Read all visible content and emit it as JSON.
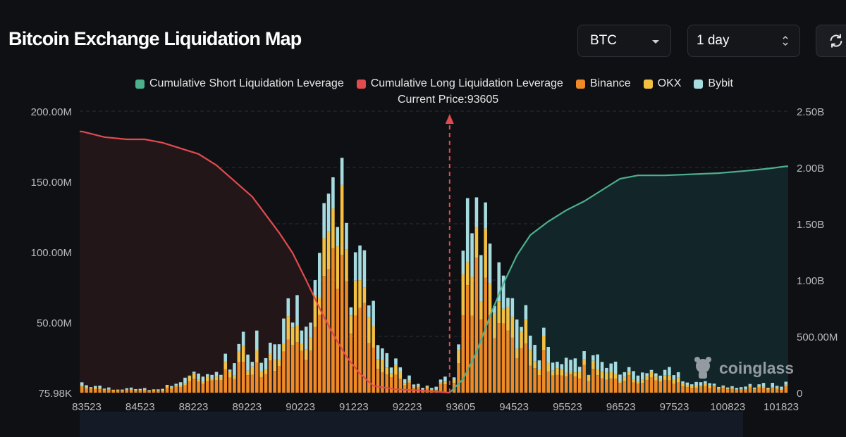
{
  "header": {
    "title": "Bitcoin Exchange Liquidation Map",
    "coin_select": "BTC",
    "range_select": "1 day"
  },
  "legend": [
    {
      "label": "Cumulative Short Liquidation Leverage",
      "color": "#4caf8e"
    },
    {
      "label": "Cumulative Long Liquidation Leverage",
      "color": "#e04b4f"
    },
    {
      "label": "Binance",
      "color": "#f08a26"
    },
    {
      "label": "OKX",
      "color": "#f4c042"
    },
    {
      "label": "Bybit",
      "color": "#a6dbe0"
    }
  ],
  "current_price_label": "Current Price:93605",
  "watermark": "coinglass",
  "colors": {
    "background": "#0f1013",
    "grid": "#2c2e33",
    "short_line": "#4caf8e",
    "long_line": "#e04b4f",
    "short_fill": "#12262a",
    "long_fill": "#231619",
    "binance": "#f08a26",
    "okx": "#f4c042",
    "bybit": "#a6dbe0",
    "marker": "#e04b4f"
  },
  "chart_data": {
    "type": "bar",
    "title": "Bitcoin Exchange Liquidation Map",
    "x_tick_labels": [
      "83523",
      "84523",
      "88223",
      "89223",
      "90223",
      "91223",
      "92223",
      "93605",
      "94523",
      "95523",
      "96523",
      "97523",
      "100823",
      "101823"
    ],
    "y_left_ticks": [
      "75.98K",
      "50.00M",
      "100.00M",
      "150.00M",
      "200.00M"
    ],
    "y_left_range": [
      0,
      200000000
    ],
    "y_right_ticks": [
      "0",
      "500.00M",
      "1.00B",
      "1.50B",
      "2.00B",
      "2.50B"
    ],
    "y_right_range": [
      0,
      2500000000
    ],
    "current_price": 93605,
    "bar_count": 158,
    "current_price_index": 82,
    "bar_profile_points": [
      [
        0,
        8
      ],
      [
        5,
        4
      ],
      [
        10,
        3
      ],
      [
        15,
        2
      ],
      [
        20,
        6
      ],
      [
        25,
        12
      ],
      [
        30,
        18
      ],
      [
        34,
        28
      ],
      [
        37,
        40
      ],
      [
        40,
        36
      ],
      [
        44,
        56
      ],
      [
        47,
        62
      ],
      [
        50,
        78
      ],
      [
        53,
        105
      ],
      [
        56,
        120
      ],
      [
        58,
        135
      ],
      [
        60,
        100
      ],
      [
        62,
        92
      ],
      [
        64,
        75
      ],
      [
        66,
        50
      ],
      [
        68,
        30
      ],
      [
        70,
        22
      ],
      [
        73,
        10
      ],
      [
        76,
        6
      ],
      [
        79,
        5
      ],
      [
        81,
        12
      ],
      [
        82,
        0
      ],
      [
        83,
        15
      ],
      [
        85,
        80
      ],
      [
        87,
        160
      ],
      [
        89,
        120
      ],
      [
        91,
        98
      ],
      [
        93,
        92
      ],
      [
        95,
        80
      ],
      [
        97,
        62
      ],
      [
        99,
        50
      ],
      [
        101,
        42
      ],
      [
        103,
        36
      ],
      [
        106,
        30
      ],
      [
        110,
        24
      ],
      [
        115,
        22
      ],
      [
        120,
        20
      ],
      [
        125,
        18
      ],
      [
        130,
        16
      ],
      [
        135,
        12
      ],
      [
        140,
        6
      ],
      [
        145,
        4
      ],
      [
        150,
        5
      ],
      [
        157,
        8
      ]
    ],
    "long_cumulative_points": [
      [
        0,
        2.32
      ],
      [
        5,
        2.27
      ],
      [
        10,
        2.25
      ],
      [
        14,
        2.25
      ],
      [
        18,
        2.22
      ],
      [
        22,
        2.17
      ],
      [
        26,
        2.12
      ],
      [
        30,
        2.02
      ],
      [
        34,
        1.88
      ],
      [
        38,
        1.74
      ],
      [
        41,
        1.58
      ],
      [
        44,
        1.42
      ],
      [
        47,
        1.24
      ],
      [
        50,
        1.0
      ],
      [
        53,
        0.75
      ],
      [
        56,
        0.52
      ],
      [
        59,
        0.32
      ],
      [
        62,
        0.17
      ],
      [
        65,
        0.06
      ],
      [
        70,
        0.03
      ],
      [
        75,
        0.02
      ],
      [
        82,
        0.0
      ]
    ],
    "short_cumulative_points": [
      [
        82,
        0.0
      ],
      [
        85,
        0.12
      ],
      [
        88,
        0.36
      ],
      [
        91,
        0.68
      ],
      [
        94,
        0.97
      ],
      [
        97,
        1.22
      ],
      [
        100,
        1.4
      ],
      [
        104,
        1.52
      ],
      [
        108,
        1.62
      ],
      [
        112,
        1.7
      ],
      [
        116,
        1.8
      ],
      [
        120,
        1.9
      ],
      [
        124,
        1.93
      ],
      [
        130,
        1.93
      ],
      [
        136,
        1.94
      ],
      [
        142,
        1.95
      ],
      [
        148,
        1.97
      ],
      [
        153,
        1.99
      ],
      [
        157,
        2.01
      ]
    ]
  }
}
